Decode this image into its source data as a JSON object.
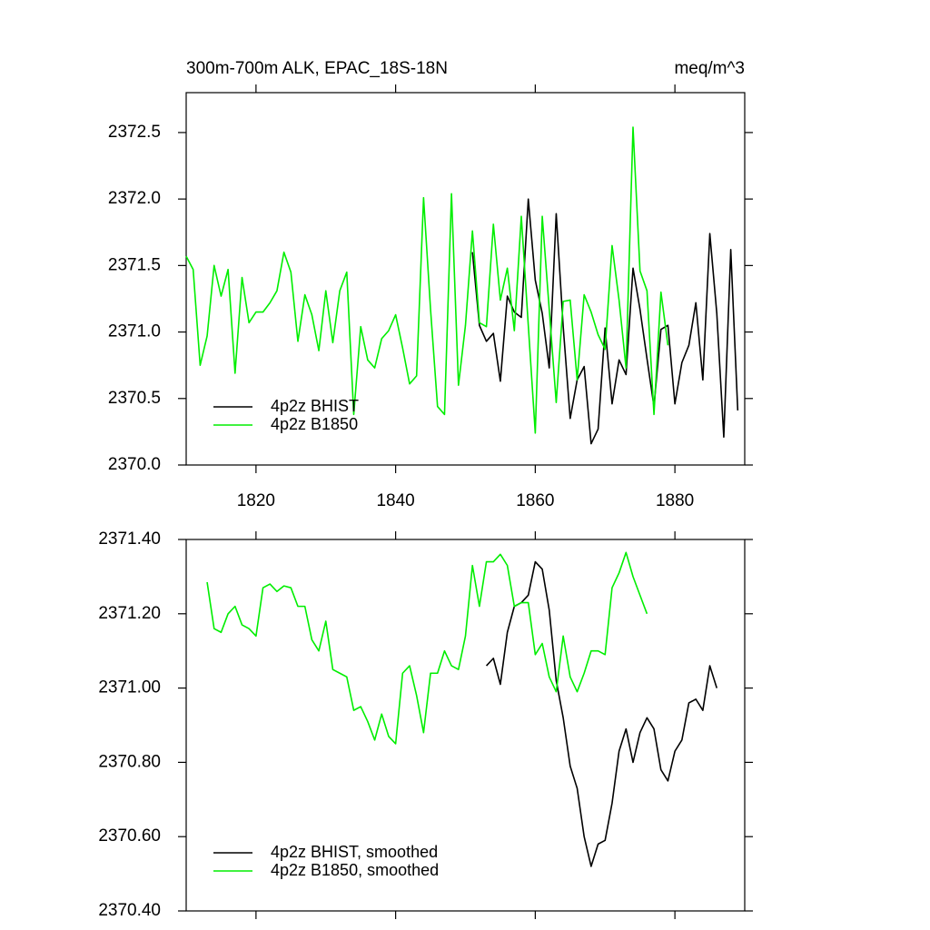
{
  "chart_data": [
    {
      "type": "line",
      "title": "300m-700m ALK, EPAC_18S-18N",
      "units": "meq/m^3",
      "x": [
        1810,
        1811,
        1812,
        1813,
        1814,
        1815,
        1816,
        1817,
        1818,
        1819,
        1820,
        1821,
        1822,
        1823,
        1824,
        1825,
        1826,
        1827,
        1828,
        1829,
        1830,
        1831,
        1832,
        1833,
        1834,
        1835,
        1836,
        1837,
        1838,
        1839,
        1840,
        1841,
        1842,
        1843,
        1844,
        1845,
        1846,
        1847,
        1848,
        1849,
        1850,
        1851,
        1852,
        1853,
        1854,
        1855,
        1856,
        1857,
        1858,
        1859,
        1860,
        1861,
        1862,
        1863,
        1864,
        1865,
        1866,
        1867,
        1868,
        1869,
        1870,
        1871,
        1872,
        1873,
        1874,
        1875,
        1876,
        1877,
        1878,
        1879,
        1880,
        1881,
        1882,
        1883,
        1884,
        1885,
        1886,
        1887,
        1888,
        1889
      ],
      "series": [
        {
          "name": "4p2z BHIST",
          "color": "#000000",
          "values": [
            null,
            null,
            null,
            null,
            null,
            null,
            null,
            null,
            null,
            null,
            null,
            null,
            null,
            null,
            null,
            null,
            null,
            null,
            null,
            null,
            null,
            null,
            null,
            null,
            null,
            null,
            null,
            null,
            null,
            null,
            null,
            null,
            null,
            null,
            null,
            null,
            null,
            null,
            null,
            null,
            null,
            2371.6,
            2371.05,
            2370.93,
            2370.99,
            2370.63,
            2371.27,
            2371.15,
            2371.11,
            2372.0,
            2371.39,
            2371.14,
            2370.73,
            2371.89,
            2371.04,
            2370.35,
            2370.64,
            2370.74,
            2370.16,
            2370.27,
            2371.03,
            2370.46,
            2370.79,
            2370.68,
            2371.48,
            2371.17,
            2370.8,
            2370.44,
            2371.02,
            2371.05,
            2370.46,
            2370.77,
            2370.9,
            2371.22,
            2370.64,
            2371.74,
            2371.14,
            2370.21,
            2371.62,
            2370.41
          ]
        },
        {
          "name": "4p2z B1850",
          "color": "#00ee00",
          "values": [
            2371.57,
            2371.47,
            2370.75,
            2370.97,
            2371.5,
            2371.27,
            2371.47,
            2370.69,
            2371.41,
            2371.07,
            2371.15,
            2371.15,
            2371.22,
            2371.31,
            2371.6,
            2371.45,
            2370.93,
            2371.28,
            2371.13,
            2370.86,
            2371.31,
            2370.92,
            2371.31,
            2371.45,
            2370.38,
            2371.04,
            2370.79,
            2370.73,
            2370.95,
            2371.01,
            2371.13,
            2370.88,
            2370.61,
            2370.67,
            2372.01,
            2371.17,
            2370.44,
            2370.38,
            2372.04,
            2370.6,
            2371.05,
            2371.76,
            2371.07,
            2371.04,
            2371.81,
            2371.24,
            2371.48,
            2371.01,
            2371.87,
            2371.05,
            2370.24,
            2371.87,
            2371.17,
            2370.47,
            2371.23,
            2371.24,
            2370.64,
            2371.28,
            2371.15,
            2370.98,
            2370.87,
            2371.65,
            2371.24,
            2370.73,
            2372.54,
            2371.46,
            2371.31,
            2370.38,
            2371.3,
            2370.9,
            null,
            null,
            null,
            null,
            null,
            null,
            null,
            null,
            null,
            null
          ]
        }
      ],
      "xlim": [
        1810,
        1890
      ],
      "xticks": [
        1820,
        1840,
        1860,
        1880
      ],
      "show_xtick_labels": true,
      "ylim": [
        2370,
        2372.8
      ],
      "yticks": [
        {
          "value": 2370,
          "label": "2370.0"
        },
        2370.5,
        {
          "value": 2371,
          "label": "2371.0"
        },
        2371.5,
        {
          "value": 2372,
          "label": "2372.0"
        },
        2372.5
      ],
      "legend": "lower left"
    },
    {
      "type": "line",
      "x": [
        1813,
        1814,
        1815,
        1816,
        1817,
        1818,
        1819,
        1820,
        1821,
        1822,
        1823,
        1824,
        1825,
        1826,
        1827,
        1828,
        1829,
        1830,
        1831,
        1832,
        1833,
        1834,
        1835,
        1836,
        1837,
        1838,
        1839,
        1840,
        1841,
        1842,
        1843,
        1844,
        1845,
        1846,
        1847,
        1848,
        1849,
        1850,
        1851,
        1852,
        1853,
        1854,
        1855,
        1856,
        1857,
        1858,
        1859,
        1860,
        1861,
        1862,
        1863,
        1864,
        1865,
        1866,
        1867,
        1868,
        1869,
        1870,
        1871,
        1872,
        1873,
        1874,
        1875,
        1876,
        1877,
        1878,
        1879,
        1880,
        1881,
        1882,
        1883,
        1884,
        1885,
        1886
      ],
      "series": [
        {
          "name": "4p2z BHIST, smoothed",
          "color": "#000000",
          "values": [
            null,
            null,
            null,
            null,
            null,
            null,
            null,
            null,
            null,
            null,
            null,
            null,
            null,
            null,
            null,
            null,
            null,
            null,
            null,
            null,
            null,
            null,
            null,
            null,
            null,
            null,
            null,
            null,
            null,
            null,
            null,
            null,
            null,
            null,
            null,
            null,
            null,
            null,
            null,
            null,
            2371.06,
            2371.08,
            2371.01,
            2371.15,
            2371.22,
            2371.23,
            2371.25,
            2371.34,
            2371.32,
            2371.21,
            2371.02,
            2370.92,
            2370.79,
            2370.73,
            2370.6,
            2370.52,
            2370.58,
            2370.59,
            2370.69,
            2370.83,
            2370.89,
            2370.8,
            2370.88,
            2370.92,
            2370.89,
            2370.78,
            2370.75,
            2370.83,
            2370.86,
            2370.96,
            2370.97,
            2370.94,
            2371.06,
            2371.0
          ]
        },
        {
          "name": "4p2z B1850, smoothed",
          "color": "#00ee00",
          "values": [
            2371.285,
            2371.16,
            2371.15,
            2371.2,
            2371.22,
            2371.17,
            2371.16,
            2371.14,
            2371.27,
            2371.28,
            2371.26,
            2371.275,
            2371.27,
            2371.22,
            2371.22,
            2371.13,
            2371.1,
            2371.18,
            2371.05,
            2371.04,
            2371.03,
            2370.94,
            2370.95,
            2370.91,
            2370.86,
            2370.93,
            2370.87,
            2370.85,
            2371.04,
            2371.06,
            2370.98,
            2370.88,
            2371.04,
            2371.04,
            2371.1,
            2371.06,
            2371.05,
            2371.14,
            2371.33,
            2371.22,
            2371.34,
            2371.34,
            2371.36,
            2371.33,
            2371.22,
            2371.23,
            2371.23,
            2371.09,
            2371.12,
            2371.03,
            2370.99,
            2371.14,
            2371.03,
            2370.99,
            2371.04,
            2371.1,
            2371.1,
            2371.09,
            2371.27,
            2371.31,
            2371.365,
            2371.3,
            2371.25,
            2371.2,
            null,
            null,
            null,
            null,
            null,
            null,
            null,
            null,
            null,
            null
          ]
        }
      ],
      "xlim": [
        1810,
        1890
      ],
      "xticks": [
        1820,
        1840,
        1860,
        1880
      ],
      "show_xtick_labels": false,
      "ylim": [
        2370.4,
        2371.4
      ],
      "yticks": [
        {
          "value": 2370.4,
          "label": "2370.40"
        },
        {
          "value": 2370.6,
          "label": "2370.60"
        },
        {
          "value": 2370.8,
          "label": "2370.80"
        },
        {
          "value": 2371,
          "label": "2371.00"
        },
        {
          "value": 2371.2,
          "label": "2371.20"
        },
        {
          "value": 2371.4,
          "label": "2371.40"
        }
      ],
      "legend": "lower left"
    }
  ]
}
